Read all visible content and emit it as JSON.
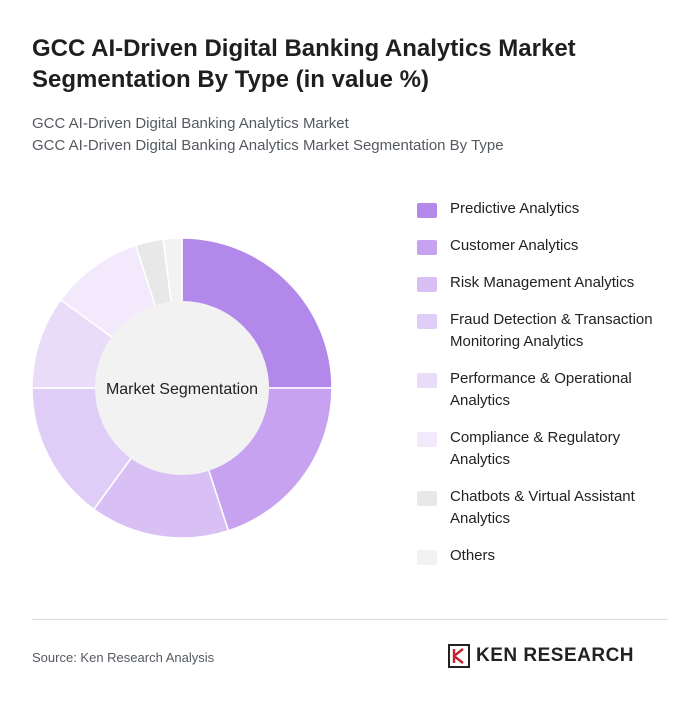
{
  "header": {
    "title_line1": "GCC AI-Driven Digital Banking Analytics Market",
    "title_line2": "Segmentation By Type (in value %)",
    "subtitle_line1": "GCC AI-Driven Digital Banking Analytics Market",
    "subtitle_line2": "GCC AI-Driven Digital Banking Analytics Market Segmentation By Type"
  },
  "chart_data": {
    "type": "pie",
    "center_label": "Market Segmentation",
    "legend_position": "right",
    "categories": [
      "Predictive Analytics",
      "Customer Analytics",
      "Risk Management Analytics",
      "Fraud Detection & Transaction Monitoring Analytics",
      "Performance & Operational Analytics",
      "Compliance & Regulatory Analytics",
      "Chatbots & Virtual Assistant Analytics",
      "Others"
    ],
    "values": [
      25,
      20,
      15,
      15,
      10,
      10,
      3,
      2
    ],
    "colors": [
      "#b388eb",
      "#c6a2f0",
      "#d8c0f5",
      "#e0cdf7",
      "#e9dcf9",
      "#f2eafc",
      "#e8e8e8",
      "#f2f2f2"
    ]
  },
  "footer": {
    "source": "Source: Ken Research Analysis",
    "logo_text": "KEN RESEARCH"
  }
}
